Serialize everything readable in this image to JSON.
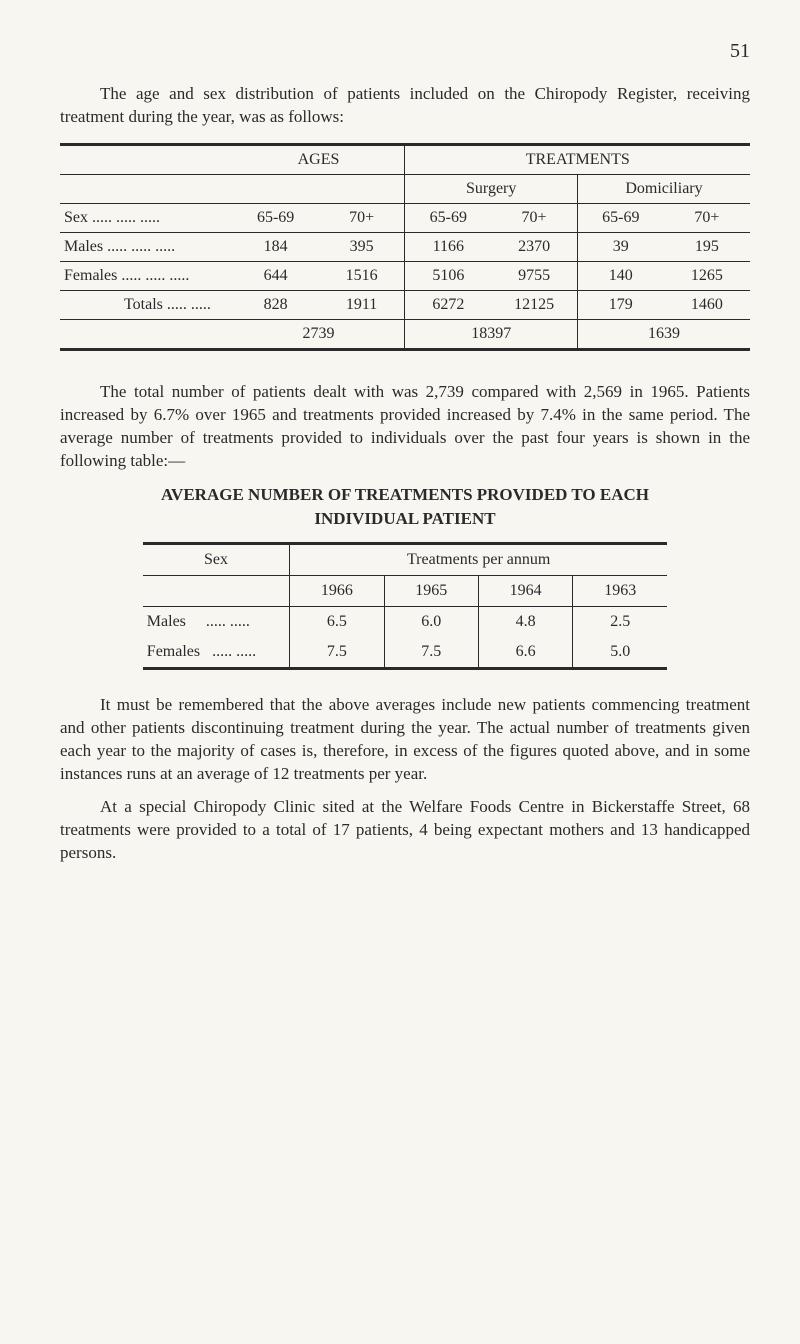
{
  "page_number": "51",
  "para1": "The age and sex distribution of patients included on the Chiropody Register, receiving treatment during the year, was as follows:",
  "table1": {
    "type": "table",
    "header_ages": "AGES",
    "header_treatments": "TREATMENTS",
    "sub_surgery": "Surgery",
    "sub_domiciliary": "Domiciliary",
    "row_sex": "Sex",
    "age_a": "65-69",
    "age_b": "70+",
    "rows": [
      {
        "label": "Males",
        "a1": "184",
        "a2": "395",
        "s1": "1166",
        "s2": "2370",
        "d1": "39",
        "d2": "195"
      },
      {
        "label": "Females",
        "a1": "644",
        "a2": "1516",
        "s1": "5106",
        "s2": "9755",
        "d1": "140",
        "d2": "1265"
      },
      {
        "label": "Totals",
        "a1": "828",
        "a2": "1911",
        "s1": "6272",
        "s2": "12125",
        "d1": "179",
        "d2": "1460"
      }
    ],
    "grand": {
      "ages": "2739",
      "surgery": "18397",
      "domiciliary": "1639"
    }
  },
  "para2": "The total number of patients dealt with was 2,739 compared with 2,569 in 1965. Patients increased by 6.7% over 1965 and treatments provided increased by 7.4% in the same period. The average number of treatments provided to individuals over the past four years is shown in the following table:—",
  "table2": {
    "type": "table",
    "title_line1": "AVERAGE NUMBER OF TREATMENTS PROVIDED TO EACH",
    "title_line2": "INDIVIDUAL PATIENT",
    "header_sex": "Sex",
    "header_treat": "Treatments per annum",
    "years": [
      "1966",
      "1965",
      "1964",
      "1963"
    ],
    "rows": [
      {
        "label": "Males",
        "v": [
          "6.5",
          "6.0",
          "4.8",
          "2.5"
        ]
      },
      {
        "label": "Females",
        "v": [
          "7.5",
          "7.5",
          "6.6",
          "5.0"
        ]
      }
    ]
  },
  "para3": "It must be remembered that the above averages include new patients commencing treatment and other patients discontinuing treatment during the year. The actual number of treatments given each year to the majority of cases is, therefore, in excess of the figures quoted above, and in some instances runs at an average of 12 treatments per year.",
  "para4": "At a special Chiropody Clinic sited at the Welfare Foods Centre in Bickerstaffe Street, 68 treatments were provided to a total of 17 patients, 4 being expectant mothers and 13 handicapped persons."
}
